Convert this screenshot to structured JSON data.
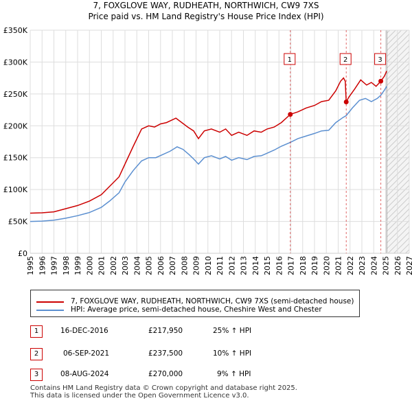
{
  "title_line1": "7, FOXGLOVE WAY, RUDHEATH, NORTHWICH, CW9 7XS",
  "title_line2": "Price paid vs. HM Land Registry's House Price Index (HPI)",
  "colors": {
    "property": "#cc0000",
    "hpi": "#5b8fd0",
    "grid": "#dddddd",
    "future_hatch": "#cccccc"
  },
  "chart_data": {
    "type": "line",
    "title": "7, FOXGLOVE WAY, RUDHEATH, NORTHWICH, CW9 7XS",
    "subtitle": "Price paid vs. HM Land Registry's House Price Index (HPI)",
    "xlabel": "",
    "ylabel": "",
    "xlim": [
      1995,
      2027
    ],
    "ylim": [
      0,
      350000
    ],
    "x_ticks": [
      1995,
      1996,
      1997,
      1998,
      1999,
      2000,
      2001,
      2002,
      2003,
      2004,
      2005,
      2006,
      2007,
      2008,
      2009,
      2010,
      2011,
      2012,
      2013,
      2014,
      2015,
      2016,
      2017,
      2018,
      2019,
      2020,
      2021,
      2022,
      2023,
      2024,
      2025,
      2026,
      2027
    ],
    "y_ticks": [
      {
        "value": 0,
        "label": "£0"
      },
      {
        "value": 50000,
        "label": "£50K"
      },
      {
        "value": 100000,
        "label": "£100K"
      },
      {
        "value": 150000,
        "label": "£150K"
      },
      {
        "value": 200000,
        "label": "£200K"
      },
      {
        "value": 250000,
        "label": "£250K"
      },
      {
        "value": 300000,
        "label": "£300K"
      },
      {
        "value": 350000,
        "label": "£350K"
      }
    ],
    "grid": true,
    "future_from": 2025.1,
    "series": [
      {
        "name": "7, FOXGLOVE WAY, RUDHEATH, NORTHWICH, CW9 7XS (semi-detached house)",
        "color": "#cc0000",
        "points": [
          [
            1995.0,
            63000
          ],
          [
            1996.0,
            63500
          ],
          [
            1997.0,
            65000
          ],
          [
            1998.0,
            70000
          ],
          [
            1999.0,
            75000
          ],
          [
            2000.0,
            82000
          ],
          [
            2001.0,
            92000
          ],
          [
            2001.7,
            105000
          ],
          [
            2002.5,
            120000
          ],
          [
            2003.0,
            140000
          ],
          [
            2003.7,
            168000
          ],
          [
            2004.4,
            195000
          ],
          [
            2005.0,
            200000
          ],
          [
            2005.5,
            198000
          ],
          [
            2006.0,
            203000
          ],
          [
            2006.5,
            205000
          ],
          [
            2007.3,
            212000
          ],
          [
            2007.8,
            205000
          ],
          [
            2008.3,
            198000
          ],
          [
            2008.8,
            192000
          ],
          [
            2009.2,
            180000
          ],
          [
            2009.7,
            192000
          ],
          [
            2010.3,
            195000
          ],
          [
            2011.0,
            190000
          ],
          [
            2011.5,
            195000
          ],
          [
            2012.0,
            185000
          ],
          [
            2012.6,
            190000
          ],
          [
            2013.3,
            185000
          ],
          [
            2013.9,
            192000
          ],
          [
            2014.5,
            190000
          ],
          [
            2015.0,
            195000
          ],
          [
            2015.6,
            198000
          ],
          [
            2016.2,
            205000
          ],
          [
            2016.96,
            217950
          ],
          [
            2017.6,
            222000
          ],
          [
            2018.3,
            228000
          ],
          [
            2019.0,
            232000
          ],
          [
            2019.6,
            238000
          ],
          [
            2020.2,
            240000
          ],
          [
            2020.8,
            255000
          ],
          [
            2021.2,
            270000
          ],
          [
            2021.45,
            275000
          ],
          [
            2021.6,
            270000
          ],
          [
            2021.68,
            237500
          ],
          [
            2021.9,
            245000
          ],
          [
            2022.4,
            258000
          ],
          [
            2022.9,
            272000
          ],
          [
            2023.4,
            264000
          ],
          [
            2023.8,
            268000
          ],
          [
            2024.2,
            262000
          ],
          [
            2024.6,
            270000
          ],
          [
            2024.9,
            278000
          ],
          [
            2025.1,
            286000
          ]
        ]
      },
      {
        "name": "HPI: Average price, semi-detached house, Cheshire West and Chester",
        "color": "#5b8fd0",
        "points": [
          [
            1995.0,
            50000
          ],
          [
            1996.0,
            50500
          ],
          [
            1997.0,
            52000
          ],
          [
            1998.0,
            55000
          ],
          [
            1999.0,
            59000
          ],
          [
            2000.0,
            64000
          ],
          [
            2001.0,
            72000
          ],
          [
            2001.7,
            82000
          ],
          [
            2002.5,
            95000
          ],
          [
            2003.0,
            112000
          ],
          [
            2003.7,
            130000
          ],
          [
            2004.4,
            145000
          ],
          [
            2005.0,
            150000
          ],
          [
            2005.6,
            150000
          ],
          [
            2006.2,
            155000
          ],
          [
            2006.8,
            160000
          ],
          [
            2007.4,
            167000
          ],
          [
            2007.9,
            163000
          ],
          [
            2008.4,
            155000
          ],
          [
            2008.8,
            148000
          ],
          [
            2009.2,
            140000
          ],
          [
            2009.7,
            150000
          ],
          [
            2010.3,
            153000
          ],
          [
            2011.0,
            148000
          ],
          [
            2011.5,
            152000
          ],
          [
            2012.0,
            146000
          ],
          [
            2012.6,
            150000
          ],
          [
            2013.3,
            147000
          ],
          [
            2013.9,
            152000
          ],
          [
            2014.5,
            153000
          ],
          [
            2015.0,
            157000
          ],
          [
            2015.6,
            162000
          ],
          [
            2016.2,
            168000
          ],
          [
            2016.96,
            174000
          ],
          [
            2017.6,
            180000
          ],
          [
            2018.3,
            184000
          ],
          [
            2019.0,
            188000
          ],
          [
            2019.6,
            192000
          ],
          [
            2020.2,
            193000
          ],
          [
            2020.8,
            205000
          ],
          [
            2021.4,
            213000
          ],
          [
            2021.68,
            216000
          ],
          [
            2022.2,
            228000
          ],
          [
            2022.8,
            240000
          ],
          [
            2023.3,
            243000
          ],
          [
            2023.8,
            238000
          ],
          [
            2024.3,
            243000
          ],
          [
            2024.6,
            248000
          ],
          [
            2024.9,
            256000
          ],
          [
            2025.1,
            262000
          ]
        ]
      }
    ],
    "sales": [
      {
        "id": "1",
        "x": 2016.96,
        "price": 217950,
        "date": "16-DEC-2016",
        "price_label": "£217,950",
        "hpi_label": "25% ↑ HPI"
      },
      {
        "id": "2",
        "x": 2021.68,
        "price": 237500,
        "date": "06-SEP-2021",
        "price_label": "£237,500",
        "hpi_label": "10% ↑ HPI"
      },
      {
        "id": "3",
        "x": 2024.6,
        "price": 270000,
        "date": "08-AUG-2024",
        "price_label": "£270,000",
        "hpi_label": "9% ↑ HPI"
      }
    ]
  },
  "legend": {
    "property_label": "7, FOXGLOVE WAY, RUDHEATH, NORTHWICH, CW9 7XS (semi-detached house)",
    "hpi_label": "HPI: Average price, semi-detached house, Cheshire West and Chester"
  },
  "footer": {
    "line1": "Contains HM Land Registry data © Crown copyright and database right 2025.",
    "line2": "This data is licensed under the Open Government Licence v3.0."
  }
}
